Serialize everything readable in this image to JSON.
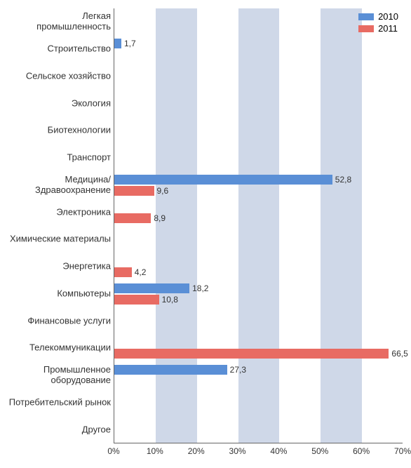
{
  "chart": {
    "type": "horizontal-bar-grouped",
    "xaxis": {
      "min": 0,
      "max": 70,
      "tick_step": 10,
      "tick_suffix": "%"
    },
    "grid_band_color": "#cfd8e8",
    "background_color": "#ffffff",
    "label_fontsize": 13,
    "value_fontsize": 12,
    "categories": [
      "Легкая промышленность",
      "Строительство",
      "Сельское хозяйство",
      "Экология",
      "Биотехнологии",
      "Транспорт",
      "Медицина/ Здравоохранение",
      "Электроника",
      "Химические материалы",
      "Энергетика",
      "Компьютеры",
      "Финансовые услуги",
      "Телекоммуникации",
      "Промышленное оборудование",
      "Потребительский рынок",
      "Другое"
    ],
    "series": [
      {
        "name": "2010",
        "color": "#5a8fd6",
        "values": [
          null,
          1.7,
          null,
          null,
          null,
          null,
          52.8,
          null,
          null,
          null,
          18.2,
          null,
          null,
          27.3,
          null,
          null
        ],
        "labels": [
          null,
          "1,7",
          null,
          null,
          null,
          null,
          "52,8",
          null,
          null,
          null,
          "18,2",
          null,
          null,
          "27,3",
          null,
          null
        ]
      },
      {
        "name": "2011",
        "color": "#e86b63",
        "values": [
          null,
          null,
          null,
          null,
          null,
          null,
          9.6,
          8.9,
          null,
          4.2,
          10.8,
          null,
          66.5,
          null,
          null,
          null
        ],
        "labels": [
          null,
          null,
          null,
          null,
          null,
          null,
          "9,6",
          "8,9",
          null,
          "4,2",
          "10,8",
          null,
          "66,5",
          null,
          null,
          null
        ]
      }
    ]
  }
}
